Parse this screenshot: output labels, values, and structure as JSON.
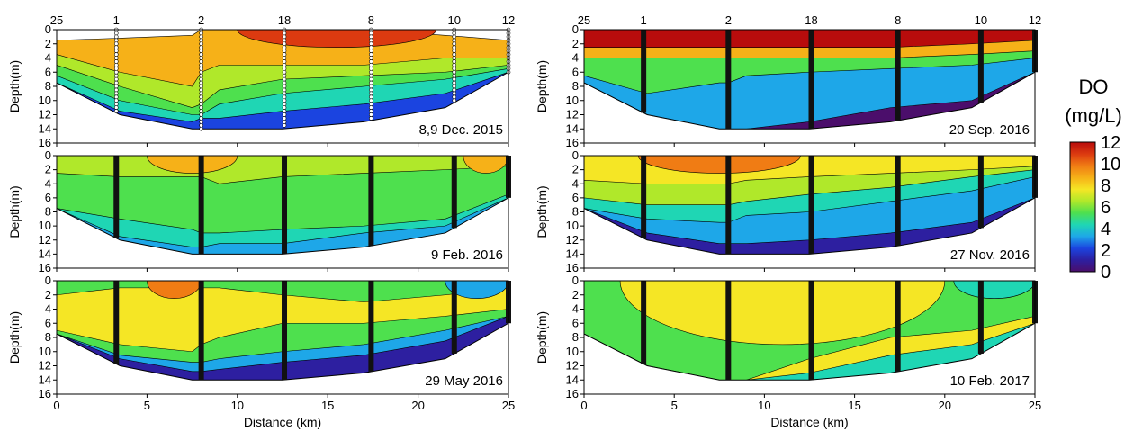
{
  "chart_data": {
    "type": "heatmap",
    "variable": "DO",
    "unit": "(mg/L)",
    "xlabel": "Distance (km)",
    "ylabel": "Depth(m)",
    "xlim": [
      0,
      25
    ],
    "ylim": [
      0,
      16
    ],
    "x_ticks": [
      "0",
      "5",
      "10",
      "15",
      "20",
      "25"
    ],
    "y_ticks": [
      "0",
      "2",
      "4",
      "6",
      "8",
      "10",
      "12",
      "14",
      "16"
    ],
    "stations": [
      {
        "label": "25",
        "km": 0
      },
      {
        "label": "1",
        "km": 3.3
      },
      {
        "label": "2",
        "km": 8.0
      },
      {
        "label": "18",
        "km": 12.6
      },
      {
        "label": "8",
        "km": 17.4
      },
      {
        "label": "10",
        "km": 22.0
      },
      {
        "label": "12",
        "km": 25
      }
    ],
    "bottom_depth": {
      "km": [
        0,
        3.5,
        7.5,
        8.0,
        9,
        12.5,
        17,
        21.5,
        25
      ],
      "depth": [
        7.5,
        12,
        14,
        14,
        14,
        14,
        13,
        11,
        6
      ]
    },
    "colorbar": {
      "title": "DO",
      "unit": "(mg/L)",
      "range": [
        0,
        12
      ],
      "ticks": [
        "0",
        "2",
        "4",
        "6",
        "8",
        "10",
        "12"
      ],
      "colors": [
        "#4b0e6b",
        "#2d1fa0",
        "#1b44e0",
        "#1ea7e8",
        "#1fd6b4",
        "#4ee04e",
        "#b0e82a",
        "#f5e625",
        "#f6b118",
        "#f07c14",
        "#dc3a10",
        "#b80c0c"
      ]
    },
    "panels": [
      {
        "label": "8,9 Dec. 2015",
        "station_labels": [
          "25",
          "1",
          "2",
          "18",
          "8",
          "10",
          "12"
        ],
        "station_style": "circles",
        "bands": [
          {
            "depths": [
              1.5,
              1.2,
              0.8,
              0,
              0,
              0,
              0,
              0.8,
              1.5
            ],
            "do": 8
          },
          {
            "depths": [
              3.5,
              6,
              8,
              6,
              5,
              5,
              5,
              4,
              4
            ],
            "do": 6.5
          },
          {
            "depths": [
              5,
              8,
              11,
              10.5,
              8.5,
              7,
              6.5,
              6,
              5
            ],
            "do": 5.5
          },
          {
            "depths": [
              6.5,
              10,
              12,
              12,
              10.5,
              9,
              8,
              7,
              5.5
            ],
            "do": 4.5
          },
          {
            "depths": [
              7.5,
              11.5,
              13,
              12.5,
              12.5,
              11.5,
              10.5,
              9,
              6
            ],
            "do": 2.5
          }
        ],
        "layers_top": [
          {
            "depths": [
              0,
              0,
              0,
              0,
              0,
              0,
              0,
              0,
              0
            ],
            "do": 10.5,
            "extent": [
              10,
              21
            ]
          }
        ]
      },
      {
        "label": "9 Feb. 2016",
        "station_labels": [],
        "station_style": "bars",
        "bands": [
          {
            "depths": [
              0,
              0,
              0,
              0,
              0,
              0,
              0,
              0,
              0
            ],
            "do": 6.5
          },
          {
            "depths": [
              2.5,
              3,
              3,
              3,
              4,
              3,
              2.5,
              2,
              1.5
            ],
            "do": 5.2
          },
          {
            "depths": [
              7.5,
              9,
              10.5,
              11,
              11,
              10.5,
              10,
              9,
              5.5
            ],
            "do": 4.3
          },
          {
            "depths": [
              7.5,
              11.5,
              13,
              13,
              12.5,
              12.5,
              11,
              10,
              6
            ],
            "do": 3.5
          }
        ],
        "layers_top": [
          {
            "depths": [
              0,
              0,
              0,
              0,
              0,
              0,
              0,
              0,
              0
            ],
            "do": 8.5,
            "extent": [
              5,
              10
            ]
          },
          {
            "depths": [
              0,
              0,
              0,
              0,
              0,
              0,
              0,
              0,
              0
            ],
            "do": 8.5,
            "extent": [
              22.5,
              25
            ]
          }
        ]
      },
      {
        "label": "29 May 2016",
        "station_labels": [],
        "station_style": "bars",
        "bands": [
          {
            "depths": [
              0,
              0,
              0,
              0,
              0,
              0,
              0,
              0,
              0
            ],
            "do": 5.5
          },
          {
            "depths": [
              2,
              1,
              1,
              1,
              1,
              2,
              3,
              2,
              1
            ],
            "do": 7.2
          },
          {
            "depths": [
              7,
              9,
              10,
              9,
              8,
              6,
              6,
              5,
              4
            ],
            "do": 5.5
          },
          {
            "depths": [
              7.5,
              10.5,
              11.5,
              11.5,
              11,
              10,
              9,
              7,
              5
            ],
            "do": 3.5
          },
          {
            "depths": [
              7.5,
              11,
              12.8,
              12.8,
              12.5,
              11.5,
              10.5,
              8.5,
              5
            ],
            "do": 1.5
          }
        ],
        "layers_top": [
          {
            "depths": [
              0,
              0,
              0,
              0,
              0,
              0,
              0,
              0,
              0
            ],
            "do": 9,
            "extent": [
              5,
              8
            ]
          },
          {
            "depths": [
              0,
              0,
              0,
              0,
              0,
              0,
              0,
              0,
              0
            ],
            "do": 3.5,
            "extent": [
              21.5,
              25
            ]
          }
        ]
      },
      {
        "label": "20 Sep. 2016",
        "station_labels": [
          "25",
          "1",
          "2",
          "18",
          "8",
          "10",
          "12"
        ],
        "station_style": "bars",
        "bands": [
          {
            "depths": [
              0,
              0,
              0,
              0,
              0,
              0,
              0,
              0,
              0
            ],
            "do": 11.5
          },
          {
            "depths": [
              2.5,
              2.5,
              2.5,
              2.5,
              2.5,
              2.5,
              2.5,
              2,
              1.5
            ],
            "do": 8
          },
          {
            "depths": [
              4,
              4,
              4,
              4,
              4,
              4,
              4,
              3.5,
              3
            ],
            "do": 5
          },
          {
            "depths": [
              6.5,
              9,
              7.5,
              7.5,
              6.5,
              6,
              5.5,
              5,
              4
            ],
            "do": 3.5
          },
          {
            "depths": [
              7.5,
              12,
              14,
              14,
              14,
              13,
              11,
              10,
              6
            ],
            "do": 0.8
          }
        ],
        "layers_top": []
      },
      {
        "label": "27 Nov. 2016",
        "station_labels": [],
        "station_style": "bars",
        "bands": [
          {
            "depths": [
              0,
              0,
              0,
              0,
              0,
              0,
              0,
              0,
              0
            ],
            "do": 7.5
          },
          {
            "depths": [
              3.5,
              4,
              4,
              4,
              3.5,
              3,
              2.5,
              2,
              1.5
            ],
            "do": 6.2
          },
          {
            "depths": [
              6,
              7,
              7,
              7,
              6.5,
              5.5,
              4.5,
              3,
              2
            ],
            "do": 4.5
          },
          {
            "depths": [
              7.5,
              9,
              9.5,
              9.5,
              8.5,
              8,
              6.5,
              5,
              3
            ],
            "do": 3
          },
          {
            "depths": [
              7.5,
              11,
              12.5,
              12.5,
              12.5,
              12,
              11,
              9.5,
              6
            ],
            "do": 1
          }
        ],
        "layers_top": [
          {
            "depths": [
              0,
              0,
              0,
              0,
              0,
              0,
              0,
              0,
              0
            ],
            "do": 9,
            "extent": [
              3,
              12
            ]
          }
        ]
      },
      {
        "label": "10 Feb. 2017",
        "station_labels": [],
        "station_style": "bars",
        "bands": [
          {
            "depths": [
              0,
              0,
              0,
              0,
              0,
              0,
              0,
              0,
              0
            ],
            "do": 5.8
          },
          {
            "depths": [
              0,
              0,
              0,
              0,
              0,
              0,
              0,
              0,
              0
            ],
            "do": 7,
            "extent": [
              2,
              20
            ]
          },
          {
            "depths": [
              7.5,
              12,
              14,
              14,
              14,
              11,
              8,
              7,
              5
            ],
            "do": 7
          },
          {
            "depths": [
              7.5,
              12,
              14,
              14,
              14,
              13,
              10.5,
              9,
              6
            ],
            "do": 4
          }
        ],
        "layers_top": [
          {
            "depths": [
              0,
              0,
              0,
              0,
              0,
              0,
              0,
              0,
              0
            ],
            "do": 4.5,
            "extent": [
              20.5,
              25
            ]
          }
        ]
      }
    ]
  }
}
